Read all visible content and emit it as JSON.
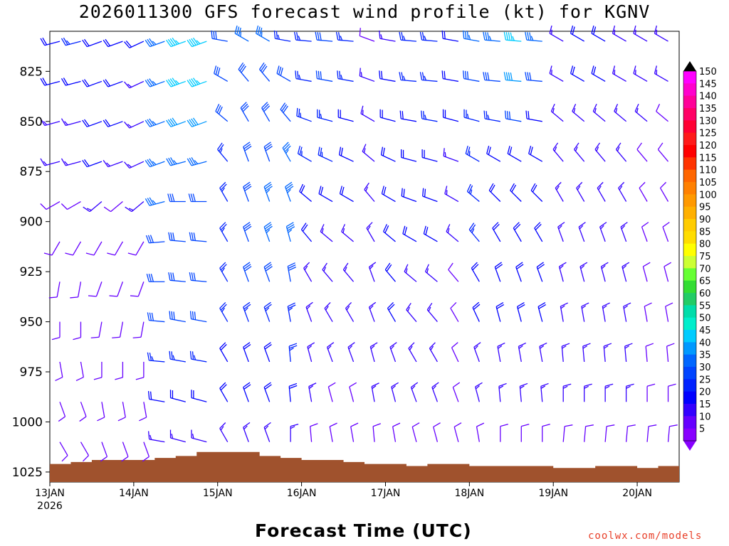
{
  "chart_data": {
    "type": "wind-barb-profile",
    "title": "2026011300 GFS forecast wind profile (kt) for KGNV",
    "xlabel": "Forecast Time (UTC)",
    "credit": "coolwx.com/models",
    "y_unit": "hPa",
    "y_ticks": [
      "825",
      "850",
      "875",
      "900",
      "925",
      "950",
      "975",
      "1000",
      "1025"
    ],
    "y_tick_values": [
      825,
      850,
      875,
      900,
      925,
      950,
      975,
      1000,
      1025
    ],
    "ylim": [
      805,
      1030
    ],
    "x_ticks": [
      "13JAN",
      "14JAN",
      "15JAN",
      "16JAN",
      "17JAN",
      "18JAN",
      "19JAN",
      "20JAN"
    ],
    "x_tick_values": [
      0,
      24,
      48,
      72,
      96,
      120,
      144,
      168
    ],
    "x_year_label": "2026",
    "xlim": [
      0,
      180
    ],
    "timestep_hours": 6,
    "levels": [
      810,
      830,
      850,
      870,
      890,
      910,
      930,
      950,
      970,
      990,
      1010
    ],
    "colorbar": {
      "labels": [
        "150",
        "145",
        "140",
        "135",
        "130",
        "125",
        "120",
        "115",
        "110",
        "105",
        "100",
        "95",
        "90",
        "85",
        "80",
        "75",
        "70",
        "65",
        "60",
        "55",
        "50",
        "45",
        "40",
        "35",
        "30",
        "25",
        "20",
        "15",
        "10",
        "5"
      ],
      "colors": [
        "#ff00ff",
        "#ff00cc",
        "#ff0099",
        "#ff0066",
        "#ff0033",
        "#ff1a1a",
        "#ff0000",
        "#ff3300",
        "#ff6600",
        "#ff8000",
        "#ff9900",
        "#ffb000",
        "#ffcc00",
        "#ffdd00",
        "#ffff00",
        "#ccff33",
        "#66ff33",
        "#33dd33",
        "#22cc66",
        "#00ddaa",
        "#00eecc",
        "#00ccff",
        "#0099ff",
        "#0066ff",
        "#0044ff",
        "#0022ff",
        "#0000ff",
        "#3300ff",
        "#6600ff",
        "#8800ff"
      ]
    },
    "winds_kt": [
      [
        20,
        25,
        20,
        20,
        20,
        35,
        45,
        45,
        30,
        35,
        35,
        25,
        25,
        30,
        25,
        10,
        15,
        25,
        25,
        20,
        35,
        35,
        45,
        35,
        15,
        20,
        20,
        15,
        15,
        15,
        10
      ],
      [
        20,
        20,
        20,
        20,
        15,
        35,
        45,
        45,
        30,
        30,
        30,
        30,
        25,
        30,
        25,
        15,
        20,
        25,
        25,
        20,
        30,
        30,
        40,
        30,
        15,
        20,
        20,
        15,
        15,
        15,
        10
      ],
      [
        15,
        15,
        20,
        20,
        15,
        35,
        40,
        40,
        30,
        30,
        30,
        30,
        25,
        25,
        20,
        15,
        20,
        20,
        25,
        20,
        25,
        25,
        30,
        20,
        15,
        15,
        15,
        15,
        15,
        10,
        10
      ],
      [
        15,
        15,
        20,
        15,
        15,
        35,
        35,
        35,
        25,
        30,
        30,
        35,
        25,
        25,
        20,
        15,
        20,
        20,
        20,
        15,
        25,
        20,
        20,
        20,
        15,
        15,
        15,
        15,
        10,
        10,
        10
      ],
      [
        10,
        10,
        15,
        10,
        15,
        35,
        30,
        30,
        25,
        30,
        35,
        35,
        20,
        20,
        20,
        15,
        20,
        20,
        20,
        15,
        25,
        20,
        20,
        20,
        15,
        15,
        15,
        15,
        10,
        10,
        10
      ],
      [
        10,
        10,
        10,
        10,
        10,
        30,
        30,
        30,
        25,
        30,
        35,
        35,
        20,
        15,
        15,
        15,
        20,
        20,
        20,
        15,
        25,
        20,
        20,
        20,
        15,
        15,
        15,
        15,
        10,
        10,
        10
      ],
      [
        10,
        10,
        10,
        10,
        10,
        30,
        30,
        30,
        25,
        30,
        30,
        30,
        15,
        15,
        15,
        15,
        20,
        15,
        15,
        10,
        20,
        20,
        20,
        20,
        15,
        15,
        15,
        15,
        10,
        10,
        10
      ],
      [
        10,
        10,
        10,
        10,
        10,
        30,
        30,
        30,
        25,
        25,
        25,
        25,
        15,
        15,
        15,
        15,
        20,
        15,
        15,
        10,
        20,
        20,
        20,
        20,
        15,
        15,
        15,
        15,
        10,
        10,
        10
      ],
      [
        10,
        10,
        10,
        10,
        10,
        25,
        25,
        25,
        20,
        20,
        20,
        25,
        15,
        15,
        15,
        15,
        15,
        15,
        15,
        10,
        15,
        15,
        15,
        15,
        15,
        15,
        15,
        15,
        10,
        10,
        10
      ],
      [
        10,
        10,
        10,
        10,
        10,
        20,
        20,
        20,
        20,
        20,
        20,
        20,
        15,
        10,
        10,
        15,
        15,
        15,
        15,
        10,
        15,
        15,
        15,
        15,
        15,
        15,
        15,
        15,
        10,
        10,
        10
      ],
      [
        10,
        10,
        10,
        10,
        10,
        15,
        15,
        15,
        15,
        15,
        15,
        15,
        10,
        10,
        10,
        10,
        10,
        10,
        10,
        10,
        10,
        10,
        10,
        10,
        10,
        10,
        10,
        10,
        10,
        10,
        10
      ]
    ],
    "wind_dir_deg": [
      [
        255,
        255,
        250,
        250,
        245,
        250,
        250,
        250,
        280,
        300,
        300,
        280,
        275,
        275,
        275,
        290,
        280,
        275,
        275,
        280,
        280,
        275,
        275,
        275,
        300,
        300,
        300,
        300,
        300,
        300,
        300
      ],
      [
        255,
        255,
        250,
        250,
        245,
        250,
        250,
        250,
        300,
        320,
        320,
        300,
        280,
        280,
        280,
        290,
        280,
        275,
        275,
        280,
        280,
        275,
        275,
        275,
        300,
        300,
        300,
        300,
        300,
        300,
        300
      ],
      [
        255,
        255,
        250,
        250,
        245,
        250,
        250,
        250,
        310,
        330,
        330,
        320,
        290,
        285,
        285,
        300,
        285,
        280,
        280,
        285,
        285,
        280,
        280,
        280,
        310,
        310,
        310,
        310,
        310,
        310,
        310
      ],
      [
        255,
        255,
        250,
        250,
        245,
        250,
        255,
        255,
        320,
        340,
        340,
        330,
        300,
        295,
        295,
        310,
        295,
        285,
        285,
        290,
        300,
        300,
        300,
        300,
        320,
        320,
        320,
        320,
        320,
        320,
        320
      ],
      [
        240,
        240,
        230,
        230,
        230,
        255,
        270,
        270,
        330,
        340,
        340,
        340,
        310,
        300,
        300,
        320,
        300,
        290,
        290,
        300,
        310,
        315,
        315,
        315,
        330,
        330,
        330,
        330,
        330,
        330,
        330
      ],
      [
        210,
        210,
        210,
        210,
        210,
        265,
        275,
        275,
        330,
        340,
        340,
        345,
        320,
        310,
        310,
        330,
        310,
        300,
        300,
        310,
        320,
        330,
        330,
        330,
        340,
        340,
        340,
        340,
        340,
        340,
        340
      ],
      [
        190,
        190,
        200,
        200,
        200,
        270,
        275,
        275,
        330,
        340,
        340,
        350,
        330,
        320,
        320,
        340,
        320,
        310,
        310,
        320,
        330,
        340,
        340,
        340,
        345,
        345,
        345,
        345,
        345,
        345,
        345
      ],
      [
        180,
        180,
        190,
        190,
        190,
        275,
        280,
        280,
        330,
        340,
        340,
        350,
        340,
        330,
        330,
        340,
        330,
        320,
        320,
        330,
        335,
        345,
        345,
        345,
        350,
        350,
        350,
        350,
        350,
        350,
        350
      ],
      [
        170,
        170,
        180,
        180,
        180,
        275,
        280,
        280,
        330,
        340,
        340,
        355,
        345,
        340,
        340,
        345,
        340,
        330,
        330,
        335,
        340,
        350,
        350,
        350,
        355,
        355,
        355,
        355,
        355,
        355,
        355
      ],
      [
        160,
        160,
        170,
        170,
        170,
        280,
        285,
        285,
        330,
        340,
        340,
        355,
        350,
        345,
        345,
        350,
        345,
        340,
        340,
        340,
        345,
        355,
        355,
        355,
        0,
        0,
        0,
        0,
        0,
        0,
        0
      ],
      [
        150,
        150,
        160,
        160,
        160,
        280,
        285,
        285,
        330,
        340,
        340,
        0,
        355,
        350,
        350,
        355,
        350,
        345,
        345,
        345,
        350,
        0,
        0,
        0,
        5,
        5,
        5,
        5,
        5,
        5,
        5
      ]
    ],
    "terrain_top_hPa": [
      1021,
      1020,
      1019,
      1019,
      1019,
      1018,
      1017,
      1015,
      1015,
      1015,
      1017,
      1018,
      1019,
      1019,
      1020,
      1021,
      1021,
      1022,
      1021,
      1021,
      1022,
      1022,
      1022,
      1022,
      1023,
      1023,
      1022,
      1022,
      1023,
      1022,
      1022
    ]
  }
}
